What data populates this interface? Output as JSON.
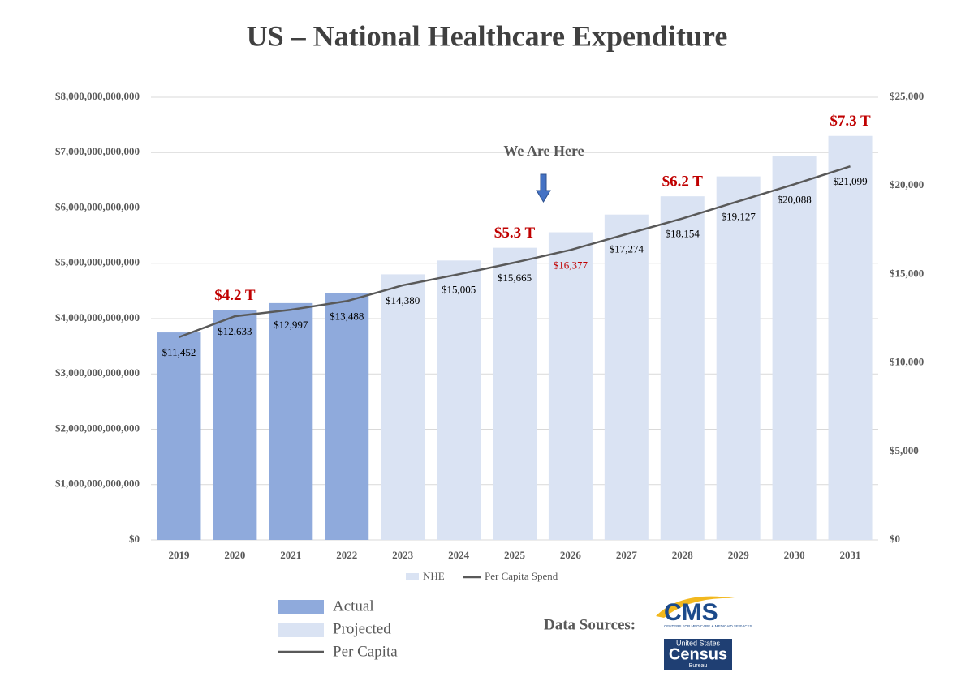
{
  "chart_data": {
    "type": "bar",
    "title": "US – National Healthcare Expenditure",
    "categories": [
      "2019",
      "2020",
      "2021",
      "2022",
      "2023",
      "2024",
      "2025",
      "2026",
      "2027",
      "2028",
      "2029",
      "2030",
      "2031"
    ],
    "series": [
      {
        "name": "NHE",
        "type": "bar",
        "colors": [
          "#8faadc",
          "#8faadc",
          "#8faadc",
          "#8faadc",
          "#dae3f3",
          "#dae3f3",
          "#dae3f3",
          "#dae3f3",
          "#dae3f3",
          "#dae3f3",
          "#dae3f3",
          "#dae3f3",
          "#dae3f3"
        ],
        "values": [
          3750000000000,
          4150000000000,
          4280000000000,
          4460000000000,
          4800000000000,
          5050000000000,
          5280000000000,
          5560000000000,
          5880000000000,
          6210000000000,
          6570000000000,
          6930000000000,
          7300000000000
        ],
        "value_labels": [
          null,
          "$4.2 T",
          null,
          null,
          null,
          null,
          "$5.3 T",
          null,
          null,
          "$6.2 T",
          null,
          null,
          "$7.3 T"
        ],
        "value_label_color": "#c00000"
      },
      {
        "name": "Per Capita Spend",
        "type": "line",
        "axis": "y2",
        "color": "#595959",
        "values": [
          11452,
          12633,
          12997,
          13488,
          14380,
          15005,
          15665,
          16377,
          17274,
          18154,
          19127,
          20088,
          21099
        ],
        "value_labels": [
          "$11,452",
          "$12,633",
          "$12,997",
          "$13,488",
          "$14,380",
          "$15,005",
          "$15,665",
          "$16,377",
          "$17,274",
          "$18,154",
          "$19,127",
          "$20,088",
          "$21,099"
        ],
        "value_label_colors": [
          "#000000",
          "#000000",
          "#000000",
          "#000000",
          "#000000",
          "#000000",
          "#000000",
          "#c00000",
          "#000000",
          "#000000",
          "#000000",
          "#000000",
          "#000000"
        ]
      }
    ],
    "ylim": [
      0,
      8000000000000
    ],
    "yticks": [
      {
        "value": 0,
        "label": "$0"
      },
      {
        "value": 1000000000000,
        "label": "$1,000,000,000,000"
      },
      {
        "value": 2000000000000,
        "label": "$2,000,000,000,000"
      },
      {
        "value": 3000000000000,
        "label": "$3,000,000,000,000"
      },
      {
        "value": 4000000000000,
        "label": "$4,000,000,000,000"
      },
      {
        "value": 5000000000000,
        "label": "$5,000,000,000,000"
      },
      {
        "value": 6000000000000,
        "label": "$6,000,000,000,000"
      },
      {
        "value": 7000000000000,
        "label": "$7,000,000,000,000"
      },
      {
        "value": 8000000000000,
        "label": "$8,000,000,000,000"
      }
    ],
    "y2lim": [
      0,
      25000
    ],
    "y2ticks": [
      {
        "value": 0,
        "label": "$0"
      },
      {
        "value": 5000,
        "label": "$5,000"
      },
      {
        "value": 10000,
        "label": "$10,000"
      },
      {
        "value": 15000,
        "label": "$15,000"
      },
      {
        "value": 20000,
        "label": "$20,000"
      },
      {
        "value": 25000,
        "label": "$25,000"
      }
    ],
    "grid": true,
    "legend": "bottom",
    "annotation": "We Are Here",
    "key": [
      "Actual",
      "Projected",
      "Per Capita"
    ],
    "sources": {
      "label": "Data Sources:",
      "cms": "CMS",
      "cms_sub": "CENTERS FOR MEDICARE & MEDICAID SERVICES",
      "census_top": "United States",
      "census": "Census",
      "census_bottom": "Bureau"
    }
  }
}
